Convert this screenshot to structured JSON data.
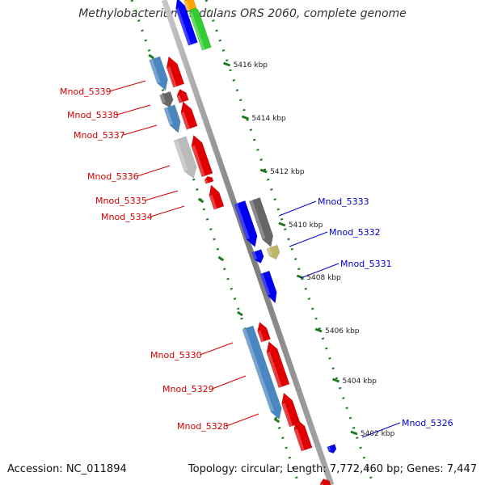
{
  "title": "Methylobacterium nodulans ORS 2060, complete genome",
  "footer": {
    "accession": "Accession: NC_011894",
    "summary": "Topology: circular; Length: 7,772,460 bp; Genes: 7,447"
  },
  "colors": {
    "forward_label": "#0000cc",
    "reverse_label": "#d40000",
    "backbone": "#808080",
    "ruler": "#1f7a1f"
  },
  "ticks": [
    "5416 kbp",
    "5414 kbp",
    "5412 kbp",
    "5410 kbp",
    "5408 kbp",
    "5406 kbp",
    "5404 kbp",
    "5402 kbp"
  ],
  "labels": {
    "reverse": [
      "Mnod_5339",
      "Mnod_5338",
      "Mnod_5337",
      "Mnod_5336",
      "Mnod_5335",
      "Mnod_5334",
      "Mnod_5330",
      "Mnod_5329",
      "Mnod_5328"
    ],
    "forward": [
      "Mnod_5333",
      "Mnod_5332",
      "Mnod_5331",
      "Mnod_5326"
    ]
  }
}
